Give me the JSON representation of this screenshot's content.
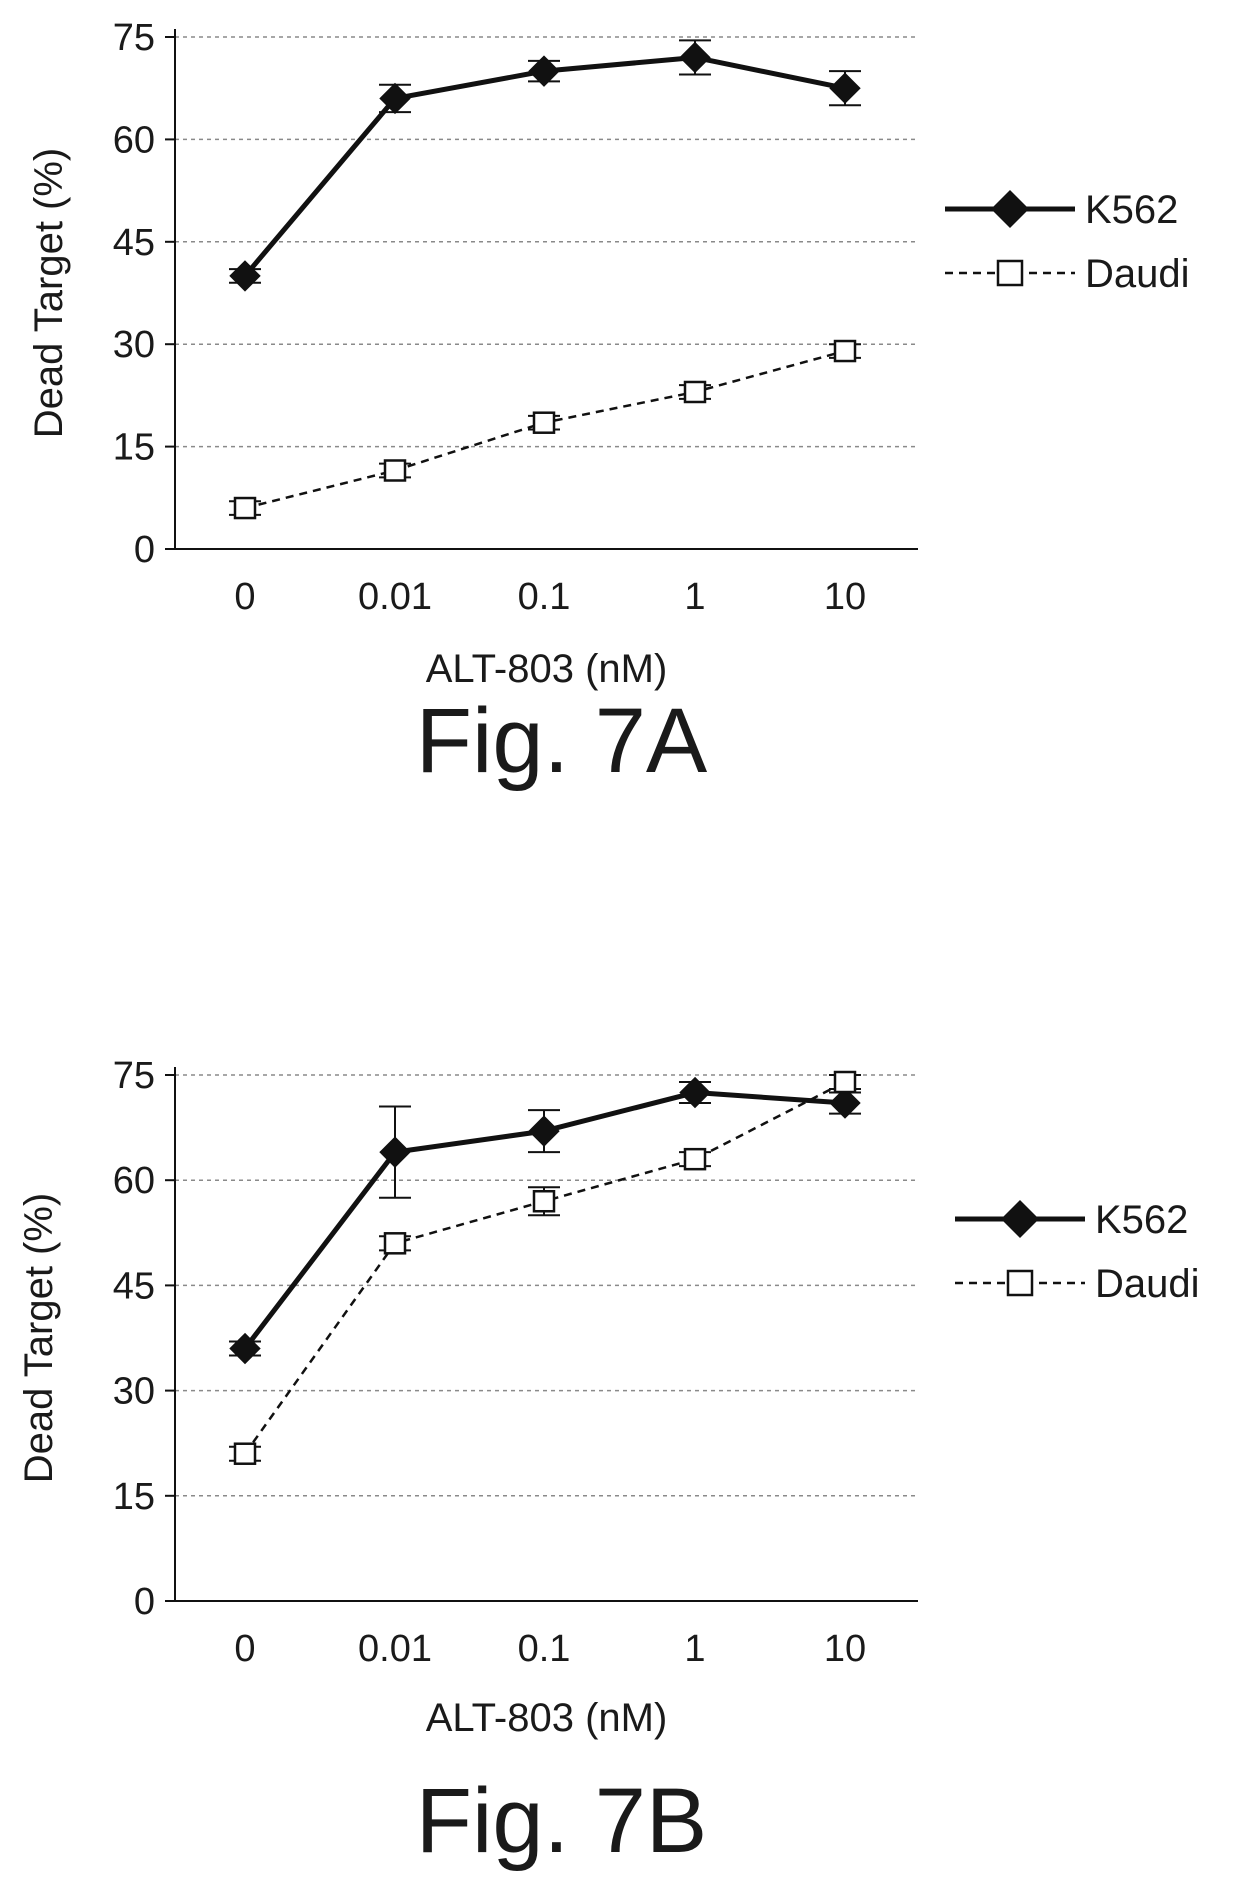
{
  "chart_data": [
    {
      "type": "line",
      "panel": "A",
      "caption": "Fig. 7A",
      "categories": [
        "0",
        "0.01",
        "0.1",
        "1",
        "10"
      ],
      "xlabel": "ALT-803 (nM)",
      "ylabel": "Dead Target (%)",
      "ylim": [
        0,
        75
      ],
      "yticks": [
        "0",
        "15",
        "30",
        "45",
        "60",
        "75"
      ],
      "grid": "horizontal dashed",
      "legend_position": "right",
      "series": [
        {
          "name": "K562",
          "marker": "diamond-filled",
          "line": "solid",
          "color": "#111111",
          "values": [
            40,
            66,
            70,
            72,
            67.5
          ],
          "errors": [
            1,
            2,
            1.5,
            2.5,
            2.5
          ]
        },
        {
          "name": "Daudi",
          "marker": "square-open",
          "line": "dashed",
          "color": "#111111",
          "values": [
            6,
            11.5,
            18.5,
            23,
            29
          ],
          "errors": [
            1,
            1,
            1,
            1,
            1
          ]
        }
      ]
    },
    {
      "type": "line",
      "panel": "B",
      "caption": "Fig. 7B",
      "categories": [
        "0",
        "0.01",
        "0.1",
        "1",
        "10"
      ],
      "xlabel": "ALT-803 (nM)",
      "ylabel": "Dead Target (%)",
      "ylim": [
        0,
        75
      ],
      "yticks": [
        "0",
        "15",
        "30",
        "45",
        "60",
        "75"
      ],
      "grid": "horizontal dashed",
      "legend_position": "right",
      "series": [
        {
          "name": "K562",
          "marker": "diamond-filled",
          "line": "solid",
          "color": "#111111",
          "values": [
            36,
            64,
            67,
            72.5,
            71
          ],
          "errors": [
            1,
            6.5,
            3,
            1.5,
            1.5
          ]
        },
        {
          "name": "Daudi",
          "marker": "square-open",
          "line": "dashed",
          "color": "#111111",
          "values": [
            21,
            51,
            57,
            63,
            74
          ],
          "errors": [
            1,
            1,
            2,
            1,
            1
          ]
        }
      ]
    }
  ]
}
